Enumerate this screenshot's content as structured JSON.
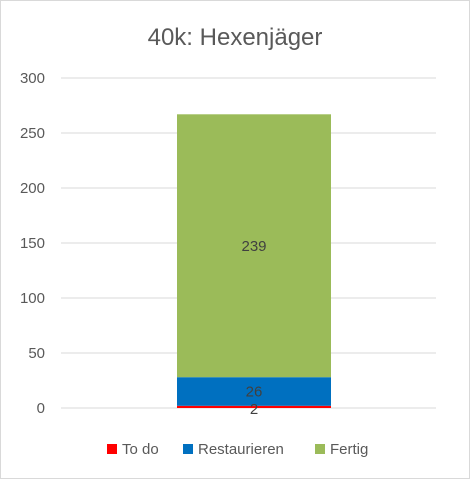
{
  "chart_data": {
    "type": "bar",
    "stacked": true,
    "title": "40k: Hexenjäger",
    "xlabel": "",
    "ylabel": "",
    "ylim": [
      0,
      300
    ],
    "yticks": [
      "0",
      "50",
      "100",
      "150",
      "200",
      "250",
      "300"
    ],
    "categories": [
      ""
    ],
    "grid": true,
    "legend_position": "bottom",
    "series": [
      {
        "name": "To do",
        "values": [
          2
        ],
        "color": "#ff0000",
        "label_color": "#404040"
      },
      {
        "name": "Restaurieren",
        "values": [
          26
        ],
        "color": "#0070c0",
        "label_color": "#404040"
      },
      {
        "name": "Fertig",
        "values": [
          239
        ],
        "color": "#9bbb59",
        "label_color": "#404040"
      }
    ]
  }
}
